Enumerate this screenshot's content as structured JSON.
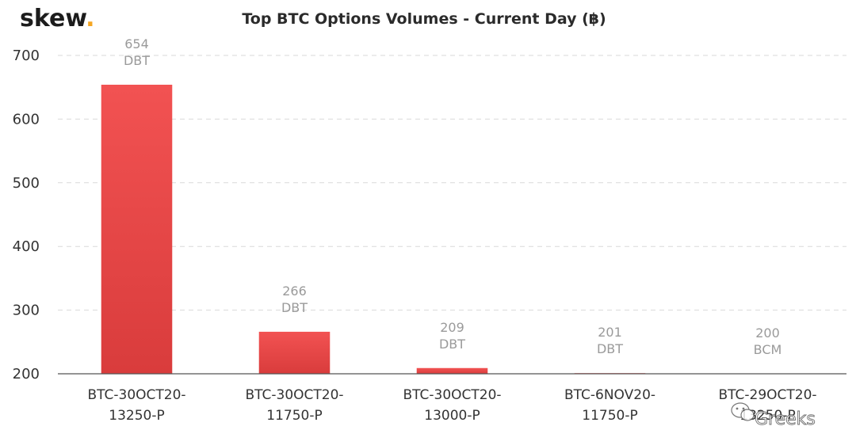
{
  "logo": {
    "text": "skew",
    "dot": ".",
    "dot_color": "#f5a623"
  },
  "watermark": {
    "text": "Greeks",
    "icon": "wechat-icon"
  },
  "colors": {
    "bar_top": "#f25252",
    "bar_bottom": "#d93c3c"
  },
  "chart_data": {
    "type": "bar",
    "title": "Top BTC Options Volumes - Current Day (฿)",
    "xlabel": "",
    "ylabel": "",
    "ylim": [
      200,
      700
    ],
    "yticks": [
      200,
      300,
      400,
      500,
      600,
      700
    ],
    "grid": true,
    "categories": [
      [
        "BTC-30OCT20-",
        "13250-P"
      ],
      [
        "BTC-30OCT20-",
        "11750-P"
      ],
      [
        "BTC-30OCT20-",
        "13000-P"
      ],
      [
        "BTC-6NOV20-",
        "11750-P"
      ],
      [
        "BTC-29OCT20-",
        "13250-P"
      ]
    ],
    "values": [
      654,
      266,
      209,
      201,
      200
    ],
    "data_labels": [
      [
        "654",
        "DBT"
      ],
      [
        "266",
        "DBT"
      ],
      [
        "209",
        "DBT"
      ],
      [
        "201",
        "DBT"
      ],
      [
        "200",
        "BCM"
      ]
    ]
  }
}
